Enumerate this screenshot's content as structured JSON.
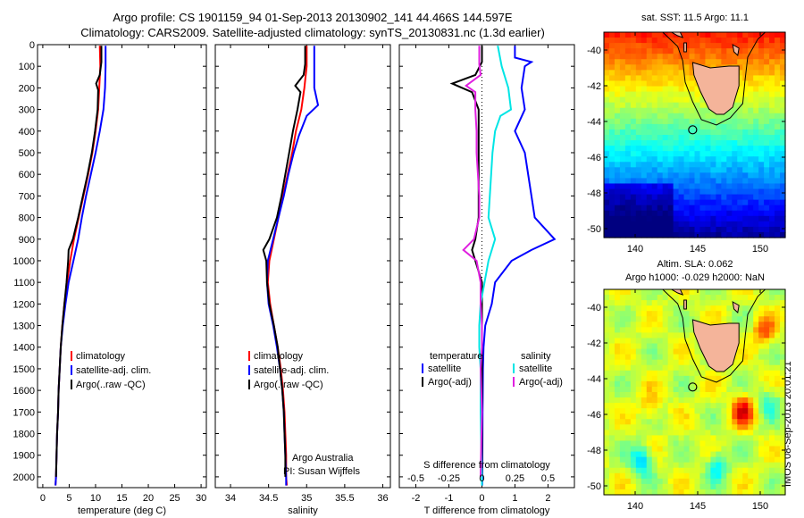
{
  "title_line1": "Argo profile: CS 1901159_94 01-Sep-2013 20130902_141 44.466S 144.597E",
  "title_line2": "Climatology: CARS2009. Satellite-adjusted climatology: synTS_20130831.nc (1.3d earlier)",
  "map1_title": "sat. SST: 11.5 Argo: 11.1",
  "map2_title_line1": "Altim. SLA: 0.062",
  "map2_title_line2": "Argo h1000: -0.029 h2000: NaN",
  "stamp": "IMOS 08-Sep-2013 20:01:21",
  "colors": {
    "climatology": "#ff0000",
    "satellite": "#0000ff",
    "argo": "#000000",
    "sal_satellite": "#00e5e5",
    "sal_argo": "#e020e0",
    "land": "#f4b49a"
  },
  "chart_data": [
    {
      "type": "line",
      "panel": "temperature",
      "xlabel": "temperature (deg C)",
      "ylabel": "",
      "xlim": [
        -1,
        31
      ],
      "ylim": [
        2050,
        0
      ],
      "xticks": [
        0,
        5,
        10,
        15,
        20,
        25,
        30
      ],
      "yticks": [
        0,
        100,
        200,
        300,
        400,
        500,
        600,
        700,
        800,
        900,
        1000,
        1100,
        1200,
        1300,
        1400,
        1500,
        1600,
        1700,
        1800,
        1900,
        2000
      ],
      "legend": [
        "climatology",
        "satellite-adj. clim.",
        "Argo(..raw -QC)"
      ],
      "series": [
        {
          "name": "climatology",
          "color": "#ff0000",
          "points": [
            [
              10.8,
              5
            ],
            [
              10.9,
              100
            ],
            [
              10.7,
              200
            ],
            [
              10.5,
              300
            ],
            [
              10.0,
              400
            ],
            [
              9.4,
              500
            ],
            [
              8.6,
              600
            ],
            [
              7.7,
              700
            ],
            [
              6.8,
              800
            ],
            [
              5.9,
              900
            ],
            [
              5.2,
              1000
            ],
            [
              4.6,
              1100
            ],
            [
              4.1,
              1200
            ],
            [
              3.7,
              1300
            ],
            [
              3.4,
              1400
            ],
            [
              3.2,
              1500
            ],
            [
              3.0,
              1600
            ],
            [
              2.9,
              1700
            ],
            [
              2.7,
              1800
            ],
            [
              2.6,
              1900
            ],
            [
              2.5,
              2000
            ],
            [
              2.4,
              2040
            ]
          ]
        },
        {
          "name": "satellite-adj. clim.",
          "color": "#0000ff",
          "points": [
            [
              11.9,
              5
            ],
            [
              11.9,
              100
            ],
            [
              11.8,
              200
            ],
            [
              11.5,
              300
            ],
            [
              10.8,
              400
            ],
            [
              10.0,
              500
            ],
            [
              9.1,
              600
            ],
            [
              8.2,
              700
            ],
            [
              7.4,
              800
            ],
            [
              6.7,
              900
            ],
            [
              5.8,
              1000
            ],
            [
              4.9,
              1100
            ],
            [
              4.3,
              1200
            ],
            [
              3.8,
              1300
            ],
            [
              3.4,
              1400
            ],
            [
              3.2,
              1500
            ],
            [
              3.0,
              1600
            ],
            [
              2.9,
              1700
            ],
            [
              2.7,
              1800
            ],
            [
              2.6,
              1900
            ],
            [
              2.5,
              2000
            ],
            [
              2.4,
              2040
            ]
          ]
        },
        {
          "name": "Argo(..raw -QC)",
          "color": "#000000",
          "points": [
            [
              11.1,
              5
            ],
            [
              11.1,
              80
            ],
            [
              10.8,
              140
            ],
            [
              10.1,
              180
            ],
            [
              10.5,
              210
            ],
            [
              10.4,
              300
            ],
            [
              9.9,
              400
            ],
            [
              9.3,
              500
            ],
            [
              8.5,
              600
            ],
            [
              7.6,
              700
            ],
            [
              6.7,
              800
            ],
            [
              5.7,
              900
            ],
            [
              4.9,
              950
            ],
            [
              4.8,
              1000
            ],
            [
              4.5,
              1100
            ],
            [
              4.1,
              1200
            ],
            [
              3.7,
              1300
            ],
            [
              3.4,
              1400
            ],
            [
              3.2,
              1500
            ],
            [
              3.0,
              1600
            ],
            [
              2.9,
              1700
            ],
            [
              2.7,
              1800
            ],
            [
              2.6,
              1900
            ],
            [
              2.5,
              2000
            ]
          ]
        }
      ]
    },
    {
      "type": "line",
      "panel": "salinity",
      "xlabel": "salinity",
      "ylabel": "",
      "xlim": [
        33.8,
        36.1
      ],
      "ylim": [
        2050,
        0
      ],
      "xticks": [
        34,
        34.5,
        35,
        35.5,
        36
      ],
      "legend": [
        "climatology",
        "satellite-adj. clim.",
        "Argo(..raw -QC)"
      ],
      "annotation": [
        "Argo Australia",
        "PI: Susan Wijffels"
      ],
      "series": [
        {
          "name": "climatology",
          "color": "#ff0000",
          "points": [
            [
              35.0,
              5
            ],
            [
              35.0,
              100
            ],
            [
              34.97,
              200
            ],
            [
              34.93,
              300
            ],
            [
              34.86,
              400
            ],
            [
              34.81,
              500
            ],
            [
              34.75,
              600
            ],
            [
              34.69,
              700
            ],
            [
              34.63,
              800
            ],
            [
              34.57,
              900
            ],
            [
              34.51,
              1000
            ],
            [
              34.49,
              1100
            ],
            [
              34.52,
              1200
            ],
            [
              34.57,
              1300
            ],
            [
              34.62,
              1400
            ],
            [
              34.66,
              1500
            ],
            [
              34.69,
              1600
            ],
            [
              34.71,
              1700
            ],
            [
              34.72,
              1800
            ],
            [
              34.73,
              1900
            ],
            [
              34.73,
              2000
            ],
            [
              34.74,
              2040
            ]
          ]
        },
        {
          "name": "satellite-adj. clim.",
          "color": "#0000ff",
          "points": [
            [
              35.1,
              5
            ],
            [
              35.1,
              100
            ],
            [
              35.1,
              200
            ],
            [
              35.15,
              280
            ],
            [
              35.0,
              330
            ],
            [
              34.9,
              420
            ],
            [
              34.83,
              500
            ],
            [
              34.76,
              600
            ],
            [
              34.7,
              700
            ],
            [
              34.63,
              800
            ],
            [
              34.56,
              900
            ],
            [
              34.49,
              1000
            ],
            [
              34.48,
              1100
            ],
            [
              34.5,
              1200
            ],
            [
              34.56,
              1300
            ],
            [
              34.61,
              1400
            ],
            [
              34.65,
              1500
            ],
            [
              34.68,
              1600
            ],
            [
              34.7,
              1700
            ],
            [
              34.71,
              1800
            ],
            [
              34.72,
              1900
            ],
            [
              34.73,
              2000
            ],
            [
              34.73,
              2040
            ]
          ]
        },
        {
          "name": "Argo(..raw -QC)",
          "color": "#000000",
          "points": [
            [
              34.98,
              5
            ],
            [
              34.98,
              90
            ],
            [
              34.96,
              140
            ],
            [
              34.85,
              190
            ],
            [
              34.92,
              220
            ],
            [
              34.88,
              300
            ],
            [
              34.82,
              400
            ],
            [
              34.77,
              500
            ],
            [
              34.72,
              600
            ],
            [
              34.67,
              700
            ],
            [
              34.61,
              800
            ],
            [
              34.51,
              900
            ],
            [
              34.43,
              950
            ],
            [
              34.47,
              1000
            ],
            [
              34.48,
              1100
            ],
            [
              34.51,
              1200
            ],
            [
              34.57,
              1300
            ],
            [
              34.62,
              1400
            ],
            [
              34.65,
              1500
            ],
            [
              34.68,
              1600
            ],
            [
              34.7,
              1700
            ],
            [
              34.71,
              1800
            ],
            [
              34.72,
              1900
            ],
            [
              34.72,
              2000
            ]
          ]
        }
      ]
    },
    {
      "type": "line",
      "panel": "difference",
      "xlabel": "T difference from climatology",
      "xlabel_top": "S difference from climatology",
      "xlim": [
        -2.5,
        2.8
      ],
      "ylim": [
        2050,
        0
      ],
      "xticks": [
        -2,
        -1,
        0,
        1,
        2
      ],
      "xticks_s": [
        -0.5,
        -0.25,
        0,
        0.25,
        0.5
      ],
      "legend_temperature_title": "temperature",
      "legend_salinity_title": "salinity",
      "legend_temperature": [
        "satellite",
        "Argo(-adj)"
      ],
      "legend_salinity": [
        "satellite",
        "Argo(-adj)"
      ],
      "series": [
        {
          "name": "T satellite",
          "color": "#0000ff",
          "points": [
            [
              1.0,
              5
            ],
            [
              1.0,
              60
            ],
            [
              1.5,
              80
            ],
            [
              1.3,
              100
            ],
            [
              1.2,
              200
            ],
            [
              1.3,
              300
            ],
            [
              1.0,
              400
            ],
            [
              1.3,
              500
            ],
            [
              1.4,
              600
            ],
            [
              1.5,
              700
            ],
            [
              1.6,
              800
            ],
            [
              2.2,
              900
            ],
            [
              1.5,
              950
            ],
            [
              0.9,
              1000
            ],
            [
              0.4,
              1100
            ],
            [
              0.3,
              1200
            ],
            [
              0.1,
              1300
            ],
            [
              0.05,
              1400
            ],
            [
              0.03,
              1500
            ],
            [
              0.02,
              1700
            ],
            [
              0.01,
              2040
            ]
          ]
        },
        {
          "name": "T Argo(-adj)",
          "color": "#000000",
          "points": [
            [
              0.0,
              5
            ],
            [
              0.0,
              80
            ],
            [
              -0.2,
              140
            ],
            [
              -0.9,
              180
            ],
            [
              -0.3,
              220
            ],
            [
              -0.1,
              300
            ],
            [
              -0.1,
              400
            ],
            [
              -0.1,
              500
            ],
            [
              -0.1,
              600
            ],
            [
              -0.1,
              700
            ],
            [
              -0.1,
              800
            ],
            [
              -0.2,
              900
            ],
            [
              -0.3,
              950
            ],
            [
              -0.2,
              1000
            ],
            [
              0.0,
              1100
            ],
            [
              0.0,
              1200
            ],
            [
              0.0,
              1300
            ],
            [
              0.0,
              1400
            ],
            [
              0.0,
              1500
            ],
            [
              0.0,
              1700
            ],
            [
              0.0,
              2000
            ]
          ]
        },
        {
          "name": "S satellite",
          "color": "#00e5e5",
          "points": [
            [
              0.12,
              5
            ],
            [
              0.15,
              100
            ],
            [
              0.2,
              200
            ],
            [
              0.22,
              300
            ],
            [
              0.14,
              330
            ],
            [
              0.1,
              400
            ],
            [
              0.08,
              500
            ],
            [
              0.07,
              600
            ],
            [
              0.06,
              700
            ],
            [
              0.05,
              800
            ],
            [
              0.1,
              900
            ],
            [
              0.05,
              1000
            ],
            [
              0.02,
              1100
            ],
            [
              -0.01,
              1200
            ],
            [
              -0.02,
              1300
            ],
            [
              -0.02,
              1400
            ],
            [
              -0.01,
              1500
            ],
            [
              -0.01,
              1700
            ],
            [
              0.0,
              2040
            ]
          ]
        },
        {
          "name": "S Argo(-adj)",
          "color": "#e020e0",
          "points": [
            [
              -0.02,
              5
            ],
            [
              -0.02,
              90
            ],
            [
              -0.01,
              140
            ],
            [
              -0.12,
              190
            ],
            [
              -0.05,
              220
            ],
            [
              -0.05,
              300
            ],
            [
              -0.04,
              400
            ],
            [
              -0.04,
              500
            ],
            [
              -0.03,
              600
            ],
            [
              -0.02,
              700
            ],
            [
              -0.02,
              800
            ],
            [
              -0.06,
              900
            ],
            [
              -0.14,
              950
            ],
            [
              -0.04,
              1000
            ],
            [
              -0.01,
              1100
            ],
            [
              -0.01,
              1200
            ],
            [
              0.0,
              1300
            ],
            [
              0.0,
              1400
            ],
            [
              -0.01,
              1500
            ],
            [
              0.0,
              1700
            ],
            [
              -0.01,
              2000
            ]
          ]
        }
      ]
    },
    {
      "type": "heatmap",
      "panel": "SST map",
      "title": "sat. SST: 11.5 Argo: 11.1",
      "xlim": [
        137.5,
        152
      ],
      "ylim": [
        -50.5,
        -39
      ],
      "xticks": [
        140,
        145,
        150
      ],
      "yticks": [
        -40,
        -42,
        -44,
        -46,
        -48,
        -50
      ],
      "argo_position": [
        144.597,
        -44.466
      ]
    },
    {
      "type": "heatmap",
      "panel": "SLA map",
      "title": "Altim. SLA: 0.062",
      "xlim": [
        137.5,
        152
      ],
      "ylim": [
        -50.5,
        -39
      ],
      "xticks": [
        140,
        145,
        150
      ],
      "yticks": [
        -40,
        -42,
        -44,
        -46,
        -48,
        -50
      ],
      "argo_position": [
        144.597,
        -44.466
      ]
    }
  ]
}
